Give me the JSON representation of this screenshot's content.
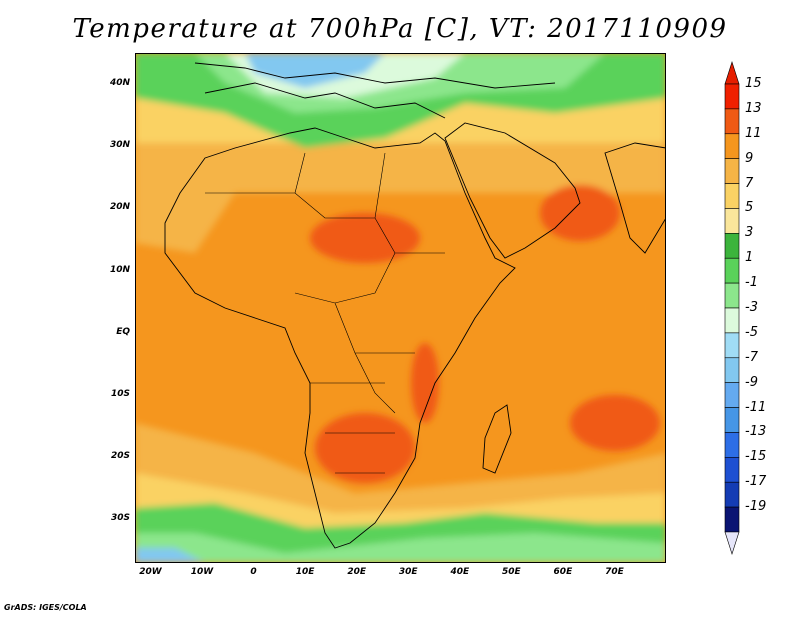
{
  "title": "Temperature at 700hPa [C], VT: 2017110909",
  "credit": "GrADS: IGES/COLA",
  "map": {
    "lon_range": [
      -23,
      80
    ],
    "lat_range": [
      -37,
      45
    ],
    "lat_ticks": [
      {
        "value": 40,
        "label": "40N"
      },
      {
        "value": 30,
        "label": "30N"
      },
      {
        "value": 20,
        "label": "20N"
      },
      {
        "value": 10,
        "label": "10N"
      },
      {
        "value": 0,
        "label": "EQ"
      },
      {
        "value": -10,
        "label": "10S"
      },
      {
        "value": -20,
        "label": "20S"
      },
      {
        "value": -30,
        "label": "30S"
      }
    ],
    "lon_ticks": [
      {
        "value": -20,
        "label": "20W"
      },
      {
        "value": -10,
        "label": "10W"
      },
      {
        "value": 0,
        "label": "0"
      },
      {
        "value": 10,
        "label": "10E"
      },
      {
        "value": 20,
        "label": "20E"
      },
      {
        "value": 30,
        "label": "30E"
      },
      {
        "value": 40,
        "label": "40E"
      },
      {
        "value": 50,
        "label": "50E"
      },
      {
        "value": 60,
        "label": "60E"
      },
      {
        "value": 70,
        "label": "70E"
      }
    ]
  },
  "colorbar": {
    "labels": [
      "15",
      "13",
      "11",
      "9",
      "7",
      "5",
      "3",
      "1",
      "-1",
      "-3",
      "-5",
      "-7",
      "-9",
      "-11",
      "-13",
      "-15",
      "-17",
      "-19"
    ],
    "colors": [
      "#f02000",
      "#f05a14",
      "#f5961e",
      "#f5b446",
      "#fad264",
      "#fae69b",
      "#3cb43c",
      "#5ad25a",
      "#8ce68c",
      "#dcfadc",
      "#a0dcf5",
      "#82c8f0",
      "#64aaf0",
      "#4696e6",
      "#2d6ee6",
      "#1e50d2",
      "#143cb4",
      "#0a1473"
    ],
    "over_color": "#e61e00",
    "under_color": "#e6e6fa"
  }
}
